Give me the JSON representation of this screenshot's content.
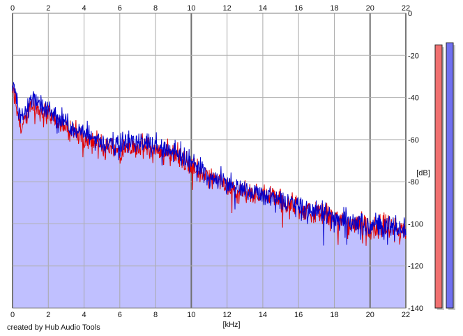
{
  "credit": "created by Hub Audio Tools",
  "chart_data": {
    "type": "area",
    "title": "",
    "xlabel": "[kHz]",
    "ylabel": "[dB]",
    "xlim": [
      0,
      22
    ],
    "ylim": [
      -140,
      0
    ],
    "x_ticks": [
      "0",
      "2",
      "4",
      "6",
      "8",
      "10",
      "12",
      "14",
      "16",
      "18",
      "20",
      "22"
    ],
    "y_ticks": [
      "0",
      "-20",
      "-40",
      "-60",
      "-80",
      "-100",
      "-120",
      "-140"
    ],
    "grid": true,
    "series": [
      {
        "color": "#e00000",
        "x": [
          0,
          0.25,
          0.5,
          0.75,
          1,
          1.5,
          2,
          2.5,
          3,
          3.5,
          4,
          4.5,
          5,
          5.5,
          6,
          6.5,
          7,
          7.5,
          8,
          8.5,
          9,
          9.5,
          10,
          10.5,
          11,
          11.5,
          12,
          12.5,
          13,
          13.5,
          14,
          14.5,
          15,
          15.5,
          16,
          16.5,
          17,
          17.5,
          18,
          18.5,
          19,
          19.5,
          20,
          20.5,
          21,
          21.5,
          22
        ],
        "y": [
          -36,
          -45,
          -55,
          -50,
          -43,
          -46,
          -48,
          -52,
          -54,
          -57,
          -60,
          -61,
          -63,
          -64,
          -65,
          -63,
          -64,
          -64,
          -65,
          -66,
          -67,
          -69,
          -73,
          -76,
          -78,
          -80,
          -82,
          -84,
          -85,
          -86,
          -86,
          -87,
          -89,
          -91,
          -92,
          -94,
          -95,
          -96,
          -97,
          -99,
          -100,
          -101,
          -102,
          -101,
          -102,
          -103,
          -106
        ]
      },
      {
        "color": "#0000cc",
        "x": [
          0,
          0.25,
          0.5,
          0.75,
          1,
          1.5,
          2,
          2.5,
          3,
          3.5,
          4,
          4.5,
          5,
          5.5,
          6,
          6.5,
          7,
          7.5,
          8,
          8.5,
          9,
          9.5,
          10,
          10.5,
          11,
          11.5,
          12,
          12.5,
          13,
          13.5,
          14,
          14.5,
          15,
          15.5,
          16,
          16.5,
          17,
          17.5,
          18,
          18.5,
          19,
          19.5,
          20,
          20.5,
          21,
          21.5,
          22
        ],
        "y": [
          -34,
          -42,
          -50,
          -46,
          -40,
          -43,
          -46,
          -50,
          -52,
          -55,
          -57,
          -59,
          -61,
          -62,
          -63,
          -61,
          -61,
          -62,
          -62,
          -64,
          -65,
          -68,
          -71,
          -74,
          -77,
          -79,
          -81,
          -83,
          -84,
          -85,
          -86,
          -87,
          -88,
          -90,
          -91,
          -93,
          -94,
          -95,
          -97,
          -98,
          -99,
          -100,
          -101,
          -100,
          -101,
          -102,
          -104
        ]
      }
    ],
    "meters": [
      {
        "color": "#f07070",
        "level_db": -15
      },
      {
        "color": "#7070f0",
        "level_db": -14
      }
    ],
    "fill_color": "#c0c0ff"
  }
}
